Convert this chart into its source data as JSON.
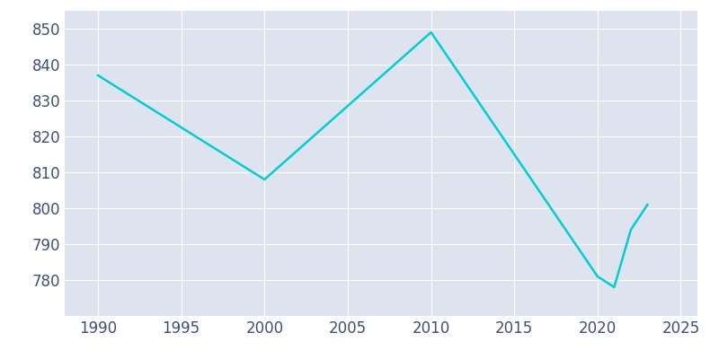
{
  "years": [
    1990,
    2000,
    2010,
    2020,
    2021,
    2022,
    2023
  ],
  "population": [
    837,
    808,
    849,
    781,
    778,
    794,
    801
  ],
  "line_color": "#00CED1",
  "figure_bg_color": "#FFFFFF",
  "plot_bg_color": "#DDE4EF",
  "xlabel": "",
  "ylabel": "",
  "xlim": [
    1988,
    2026
  ],
  "ylim": [
    770,
    855
  ],
  "xticks": [
    1990,
    1995,
    2000,
    2005,
    2010,
    2015,
    2020,
    2025
  ],
  "yticks": [
    780,
    790,
    800,
    810,
    820,
    830,
    840,
    850
  ],
  "line_width": 1.8,
  "grid_color": "#FFFFFF",
  "tick_color": "#3D4E7A",
  "tick_fontsize": 12
}
